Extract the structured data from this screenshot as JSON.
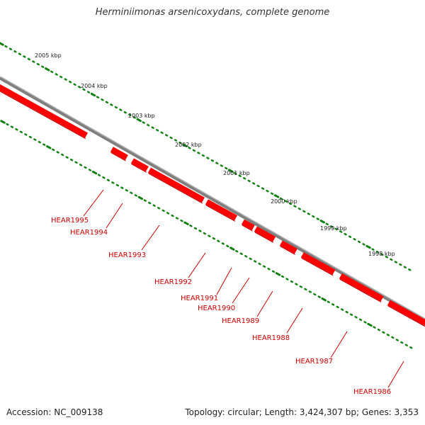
{
  "title": "Herminiimonas arsenicoxydans, complete genome",
  "footer": {
    "accession": "Accession: NC_009138",
    "topology": "Topology: circular; Length: 3,424,307 bp; Genes: 3,353"
  },
  "colors": {
    "gene": "#ff0000",
    "gene_dark": "#c80000",
    "backbone": "#7f7f7f",
    "tick": "#128012",
    "label": "#cc0000"
  },
  "scale_labels": [
    "2005 kbp",
    "2004 kbp",
    "2003 kbp",
    "2002 kbp",
    "2001 kbp",
    "2000 kbp",
    "1999 kbp",
    "1998 kbp"
  ],
  "genes": [
    {
      "name": "HEAR1995",
      "strand": "-"
    },
    {
      "name": "HEAR1994",
      "strand": "-"
    },
    {
      "name": "HEAR1993",
      "strand": "-"
    },
    {
      "name": "HEAR1992",
      "strand": "-"
    },
    {
      "name": "HEAR1991",
      "strand": "-"
    },
    {
      "name": "HEAR1990",
      "strand": "-"
    },
    {
      "name": "HEAR1989",
      "strand": "-"
    },
    {
      "name": "HEAR1988",
      "strand": "-"
    },
    {
      "name": "HEAR1987",
      "strand": "-"
    },
    {
      "name": "HEAR1986",
      "strand": "-"
    }
  ]
}
